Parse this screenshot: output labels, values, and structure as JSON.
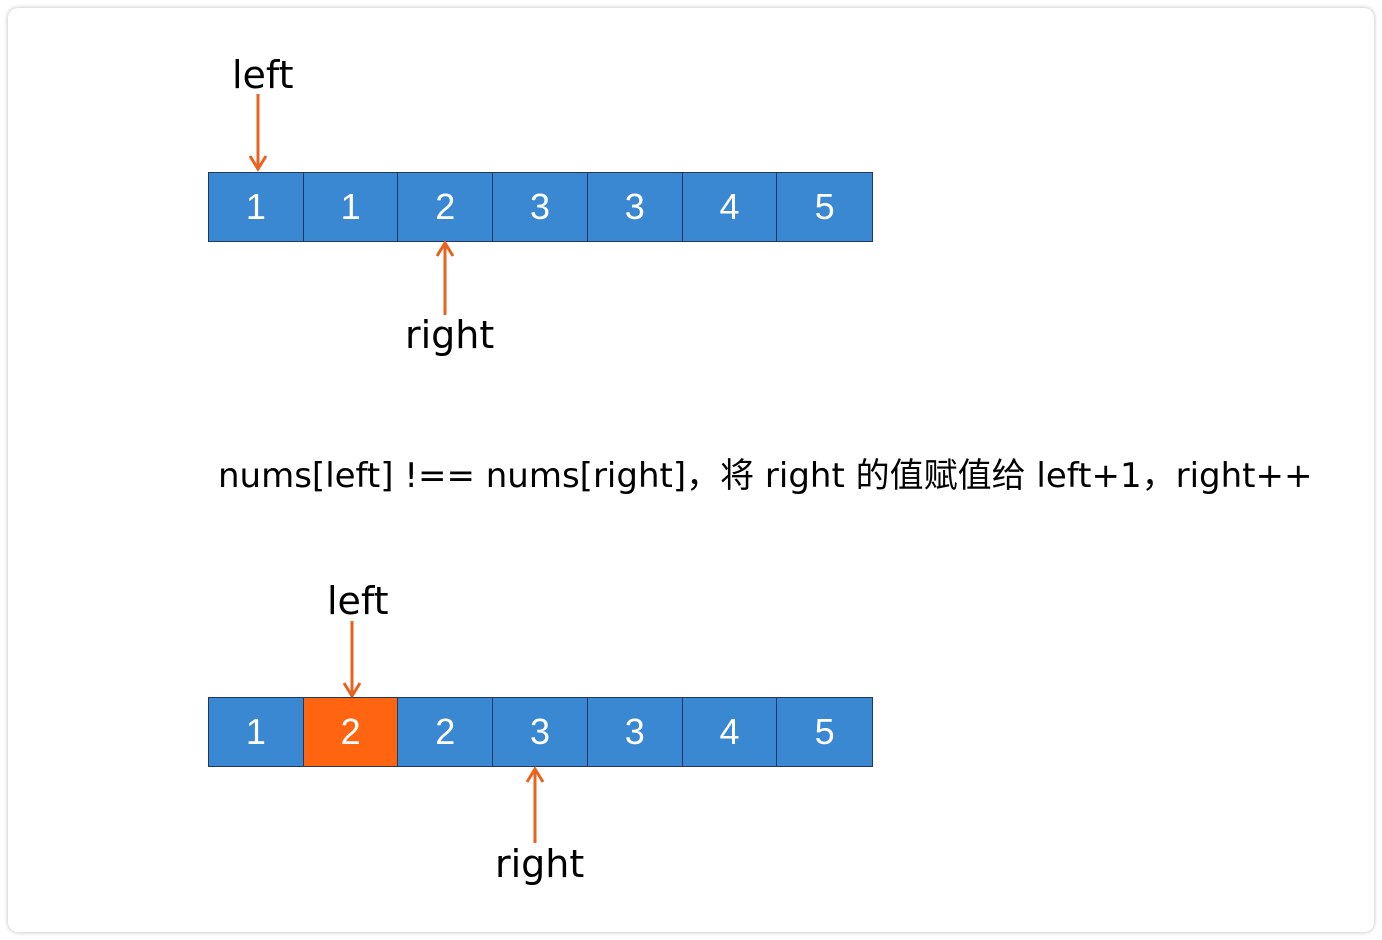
{
  "colors": {
    "cell": "#3a87d2",
    "highlight": "#ff6410",
    "arrow": "#e8631f"
  },
  "step1": {
    "values": [
      "1",
      "1",
      "2",
      "3",
      "3",
      "4",
      "5"
    ],
    "highlight_index": null,
    "left_label": "left",
    "right_label": "right"
  },
  "caption": "nums[left] !== nums[right]，将 right 的值赋值给 left+1，right++",
  "step2": {
    "values": [
      "1",
      "2",
      "2",
      "3",
      "3",
      "4",
      "5"
    ],
    "highlight_index": 1,
    "left_label": "left",
    "right_label": "right"
  }
}
